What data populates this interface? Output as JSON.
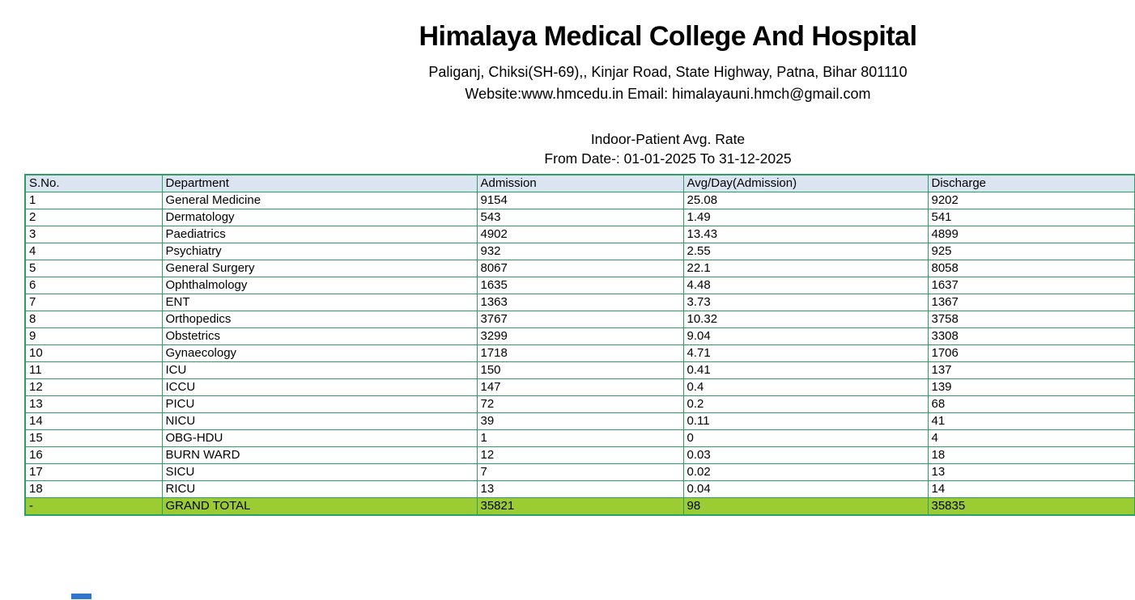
{
  "header": {
    "title": "Himalaya Medical College And Hospital",
    "address": "Paliganj, Chiksi(SH-69),, Kinjar Road, State Highway, Patna, Bihar 801110",
    "contact": "Website:www.hmcedu.in Email: himalayauni.hmch@gmail.com"
  },
  "report": {
    "title": "Indoor-Patient Avg. Rate",
    "date_range": "From Date-: 01-01-2025 To  31-12-2025"
  },
  "table": {
    "columns": [
      "S.No.",
      "Department",
      "Admission",
      "Avg/Day(Admission)",
      "Discharge"
    ],
    "rows": [
      {
        "sno": "1",
        "department": "General Medicine",
        "admission": "9154",
        "avg_day": "25.08",
        "discharge": "9202"
      },
      {
        "sno": "2",
        "department": "Dermatology",
        "admission": "543",
        "avg_day": "1.49",
        "discharge": "541"
      },
      {
        "sno": "3",
        "department": "Paediatrics",
        "admission": "4902",
        "avg_day": "13.43",
        "discharge": "4899"
      },
      {
        "sno": "4",
        "department": "Psychiatry",
        "admission": "932",
        "avg_day": "2.55",
        "discharge": "925"
      },
      {
        "sno": "5",
        "department": "General Surgery",
        "admission": "8067",
        "avg_day": "22.1",
        "discharge": "8058"
      },
      {
        "sno": "6",
        "department": "Ophthalmology",
        "admission": "1635",
        "avg_day": "4.48",
        "discharge": "1637"
      },
      {
        "sno": "7",
        "department": "ENT",
        "admission": "1363",
        "avg_day": "3.73",
        "discharge": "1367"
      },
      {
        "sno": "8",
        "department": "Orthopedics",
        "admission": "3767",
        "avg_day": "10.32",
        "discharge": "3758"
      },
      {
        "sno": "9",
        "department": "Obstetrics",
        "admission": "3299",
        "avg_day": "9.04",
        "discharge": "3308"
      },
      {
        "sno": "10",
        "department": "Gynaecology",
        "admission": "1718",
        "avg_day": "4.71",
        "discharge": "1706"
      },
      {
        "sno": "11",
        "department": "ICU",
        "admission": "150",
        "avg_day": "0.41",
        "discharge": "137"
      },
      {
        "sno": "12",
        "department": "ICCU",
        "admission": "147",
        "avg_day": "0.4",
        "discharge": "139"
      },
      {
        "sno": "13",
        "department": "PICU",
        "admission": "72",
        "avg_day": "0.2",
        "discharge": "68"
      },
      {
        "sno": "14",
        "department": "NICU",
        "admission": "39",
        "avg_day": "0.11",
        "discharge": "41"
      },
      {
        "sno": "15",
        "department": "OBG-HDU",
        "admission": "1",
        "avg_day": "0",
        "discharge": "4"
      },
      {
        "sno": "16",
        "department": "BURN WARD",
        "admission": "12",
        "avg_day": "0.03",
        "discharge": "18"
      },
      {
        "sno": "17",
        "department": "SICU",
        "admission": "7",
        "avg_day": "0.02",
        "discharge": "13"
      },
      {
        "sno": "18",
        "department": "RICU",
        "admission": "13",
        "avg_day": "0.04",
        "discharge": "14"
      }
    ],
    "grand_total": {
      "sno": "-",
      "department": "GRAND TOTAL",
      "admission": "35821",
      "avg_day": "98",
      "discharge": "35835"
    }
  },
  "colors": {
    "table_border": "#2f9e62",
    "header_row_bg": "#dbe5f1",
    "grand_total_bg": "#9bcc34",
    "bottom_bar": "#2e75cf"
  }
}
